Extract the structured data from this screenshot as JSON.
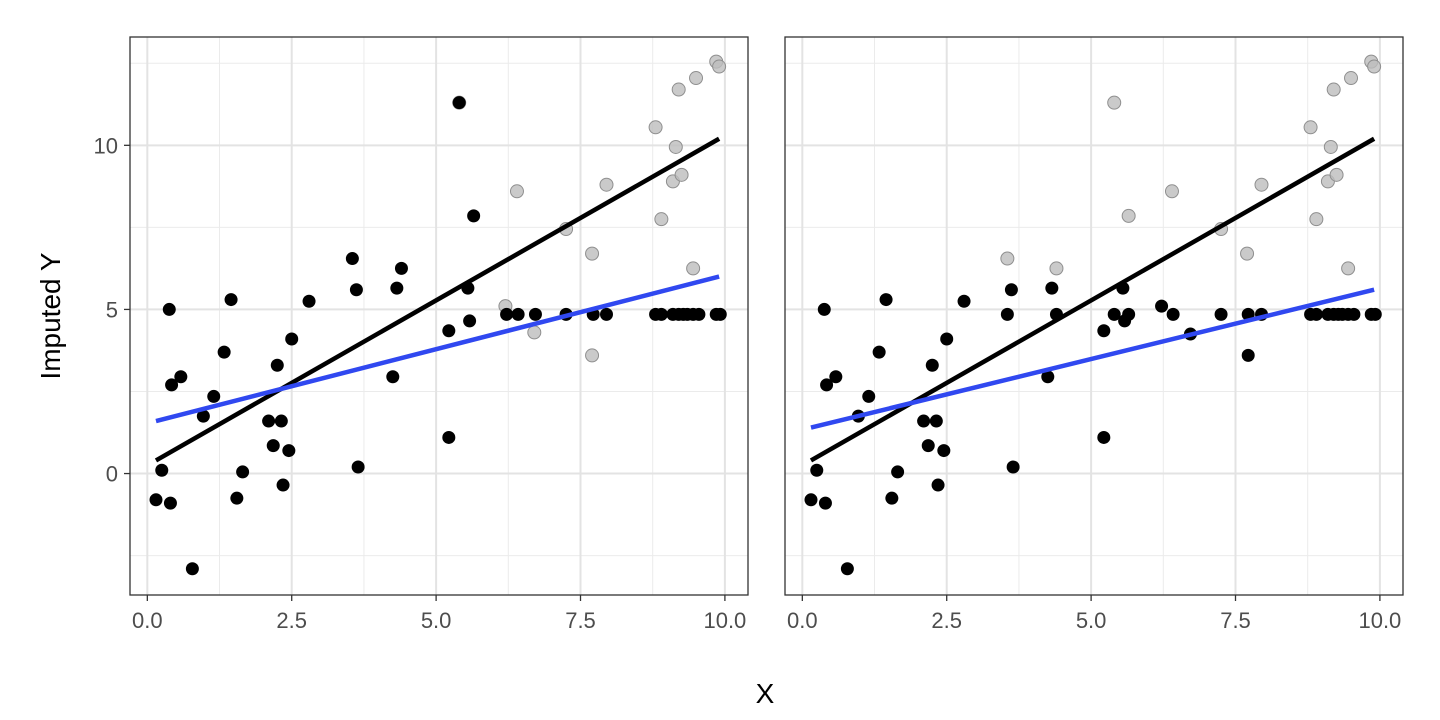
{
  "figure": {
    "xlabel": "X",
    "ylabel": "Imputed Y"
  },
  "chart_data": [
    {
      "type": "scatter",
      "xlim": [
        -0.3,
        10.4
      ],
      "ylim": [
        -3.7,
        13.3
      ],
      "x_ticks": [
        0.0,
        2.5,
        5.0,
        7.5,
        10.0
      ],
      "x_tick_labels": [
        "0.0",
        "2.5",
        "5.0",
        "7.5",
        "10.0"
      ],
      "y_ticks": [
        0,
        5,
        10
      ],
      "y_tick_labels": [
        "0",
        "5",
        "10"
      ],
      "grid": true,
      "series": [
        {
          "role": "original",
          "color": "#bdbdbd",
          "points": [
            [
              5.4,
              11.3
            ],
            [
              6.4,
              8.6
            ],
            [
              6.2,
              5.1
            ],
            [
              6.7,
              4.3
            ],
            [
              7.25,
              7.45
            ],
            [
              7.7,
              6.7
            ],
            [
              7.7,
              3.6
            ],
            [
              7.95,
              8.8
            ],
            [
              8.8,
              10.55
            ],
            [
              8.9,
              7.75
            ],
            [
              9.1,
              8.9
            ],
            [
              9.15,
              9.95
            ],
            [
              9.2,
              11.7
            ],
            [
              9.25,
              9.1
            ],
            [
              9.45,
              6.25
            ],
            [
              9.5,
              12.05
            ],
            [
              9.85,
              12.55
            ],
            [
              9.9,
              12.4
            ]
          ]
        },
        {
          "role": "imputed",
          "color": "#000000",
          "points": [
            [
              0.15,
              -0.8
            ],
            [
              0.25,
              0.1
            ],
            [
              0.38,
              5.0
            ],
            [
              0.4,
              -0.9
            ],
            [
              0.42,
              2.7
            ],
            [
              0.58,
              2.95
            ],
            [
              0.78,
              -2.9
            ],
            [
              0.97,
              1.75
            ],
            [
              1.15,
              2.35
            ],
            [
              1.33,
              3.7
            ],
            [
              1.45,
              5.3
            ],
            [
              1.55,
              -0.75
            ],
            [
              1.65,
              0.05
            ],
            [
              2.1,
              1.6
            ],
            [
              2.18,
              0.85
            ],
            [
              2.25,
              3.3
            ],
            [
              2.32,
              1.6
            ],
            [
              2.35,
              -0.35
            ],
            [
              2.45,
              0.7
            ],
            [
              2.5,
              4.1
            ],
            [
              2.8,
              5.25
            ],
            [
              3.55,
              6.55
            ],
            [
              3.62,
              5.6
            ],
            [
              3.65,
              0.2
            ],
            [
              4.25,
              2.95
            ],
            [
              4.32,
              5.65
            ],
            [
              4.4,
              6.25
            ],
            [
              5.22,
              1.1
            ],
            [
              5.22,
              4.35
            ],
            [
              5.4,
              11.3
            ],
            [
              5.55,
              5.65
            ],
            [
              5.58,
              4.65
            ],
            [
              5.65,
              7.85
            ],
            [
              6.22,
              4.85
            ],
            [
              6.42,
              4.85
            ],
            [
              6.72,
              4.85
            ],
            [
              7.25,
              4.85
            ],
            [
              7.72,
              4.85
            ],
            [
              7.95,
              4.85
            ],
            [
              8.8,
              4.85
            ],
            [
              8.9,
              4.85
            ],
            [
              9.1,
              4.85
            ],
            [
              9.2,
              4.85
            ],
            [
              9.28,
              4.85
            ],
            [
              9.35,
              4.85
            ],
            [
              9.45,
              4.85
            ],
            [
              9.55,
              4.85
            ],
            [
              9.85,
              4.85
            ],
            [
              9.92,
              4.85
            ]
          ]
        }
      ],
      "lines": [
        {
          "role": "true-fit",
          "color": "#000000",
          "x": [
            0.15,
            9.9
          ],
          "y": [
            0.4,
            10.2
          ]
        },
        {
          "role": "imputed-fit",
          "color": "#3048f0",
          "x": [
            0.15,
            9.9
          ],
          "y": [
            1.6,
            6.0
          ]
        }
      ]
    },
    {
      "type": "scatter",
      "xlim": [
        -0.3,
        10.4
      ],
      "ylim": [
        -3.7,
        13.3
      ],
      "x_ticks": [
        0.0,
        2.5,
        5.0,
        7.5,
        10.0
      ],
      "x_tick_labels": [
        "0.0",
        "2.5",
        "5.0",
        "7.5",
        "10.0"
      ],
      "y_ticks": [
        0,
        5,
        10
      ],
      "grid": true,
      "series": [
        {
          "role": "original",
          "color": "#bdbdbd",
          "points": [
            [
              3.55,
              6.55
            ],
            [
              4.4,
              6.25
            ],
            [
              5.4,
              11.3
            ],
            [
              5.65,
              7.85
            ],
            [
              6.4,
              8.6
            ],
            [
              7.25,
              7.45
            ],
            [
              7.7,
              6.7
            ],
            [
              7.95,
              8.8
            ],
            [
              8.8,
              10.55
            ],
            [
              8.9,
              7.75
            ],
            [
              9.1,
              8.9
            ],
            [
              9.15,
              9.95
            ],
            [
              9.2,
              11.7
            ],
            [
              9.25,
              9.1
            ],
            [
              9.45,
              6.25
            ],
            [
              9.5,
              12.05
            ],
            [
              9.85,
              12.55
            ],
            [
              9.9,
              12.4
            ]
          ]
        },
        {
          "role": "imputed",
          "color": "#000000",
          "points": [
            [
              0.15,
              -0.8
            ],
            [
              0.25,
              0.1
            ],
            [
              0.38,
              5.0
            ],
            [
              0.4,
              -0.9
            ],
            [
              0.42,
              2.7
            ],
            [
              0.58,
              2.95
            ],
            [
              0.78,
              -2.9
            ],
            [
              0.97,
              1.75
            ],
            [
              1.15,
              2.35
            ],
            [
              1.33,
              3.7
            ],
            [
              1.45,
              5.3
            ],
            [
              1.55,
              -0.75
            ],
            [
              1.65,
              0.05
            ],
            [
              2.1,
              1.6
            ],
            [
              2.18,
              0.85
            ],
            [
              2.25,
              3.3
            ],
            [
              2.32,
              1.6
            ],
            [
              2.35,
              -0.35
            ],
            [
              2.45,
              0.7
            ],
            [
              2.5,
              4.1
            ],
            [
              2.8,
              5.25
            ],
            [
              3.55,
              4.85
            ],
            [
              3.62,
              5.6
            ],
            [
              3.65,
              0.2
            ],
            [
              4.25,
              2.95
            ],
            [
              4.32,
              5.65
            ],
            [
              4.4,
              4.85
            ],
            [
              5.22,
              1.1
            ],
            [
              5.22,
              4.35
            ],
            [
              5.4,
              4.85
            ],
            [
              5.55,
              5.65
            ],
            [
              5.58,
              4.65
            ],
            [
              5.65,
              4.85
            ],
            [
              6.22,
              5.1
            ],
            [
              6.42,
              4.85
            ],
            [
              6.72,
              4.25
            ],
            [
              7.25,
              4.85
            ],
            [
              7.72,
              4.85
            ],
            [
              7.72,
              3.6
            ],
            [
              7.95,
              4.85
            ],
            [
              8.8,
              4.85
            ],
            [
              8.9,
              4.85
            ],
            [
              9.1,
              4.85
            ],
            [
              9.2,
              4.85
            ],
            [
              9.28,
              4.85
            ],
            [
              9.35,
              4.85
            ],
            [
              9.45,
              4.85
            ],
            [
              9.55,
              4.85
            ],
            [
              9.85,
              4.85
            ],
            [
              9.92,
              4.85
            ]
          ]
        }
      ],
      "lines": [
        {
          "role": "true-fit",
          "color": "#000000",
          "x": [
            0.15,
            9.9
          ],
          "y": [
            0.4,
            10.2
          ]
        },
        {
          "role": "imputed-fit",
          "color": "#3048f0",
          "x": [
            0.15,
            9.9
          ],
          "y": [
            1.4,
            5.6
          ]
        }
      ]
    }
  ]
}
